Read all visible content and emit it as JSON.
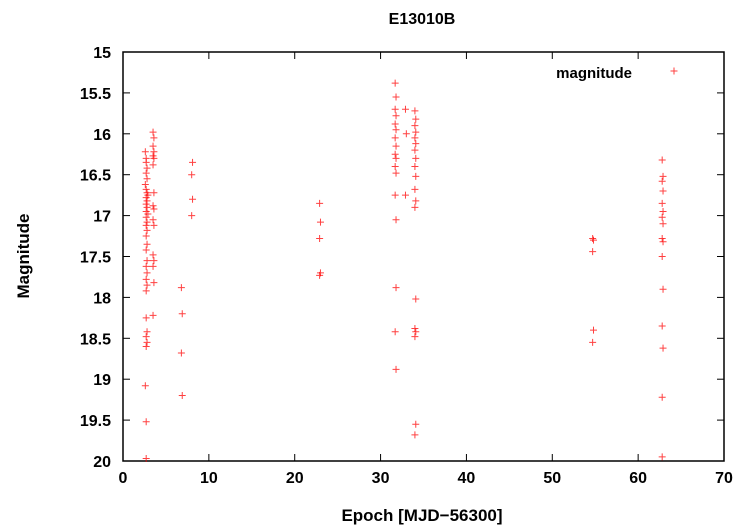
{
  "chart_data": {
    "type": "scatter",
    "title": "E13010B",
    "xlabel": "Epoch [MJD−56300]",
    "ylabel": "Magnitude",
    "xlim": [
      0,
      70
    ],
    "ylim": [
      20,
      15
    ],
    "y_inverted": true,
    "x_ticks": [
      0,
      10,
      20,
      30,
      40,
      50,
      60,
      70
    ],
    "y_ticks": [
      15,
      15.5,
      16,
      16.5,
      17,
      17.5,
      18,
      18.5,
      19,
      19.5,
      20
    ],
    "grid": false,
    "legend_position": "top-right",
    "marker": "plus",
    "color": "#ff0000",
    "series": [
      {
        "name": "magnitude",
        "points": [
          [
            2.6,
            16.22
          ],
          [
            2.7,
            16.3
          ],
          [
            2.7,
            16.35
          ],
          [
            2.8,
            16.42
          ],
          [
            2.7,
            16.48
          ],
          [
            2.8,
            16.55
          ],
          [
            2.6,
            16.62
          ],
          [
            2.7,
            16.68
          ],
          [
            2.8,
            16.72
          ],
          [
            2.9,
            16.75
          ],
          [
            2.7,
            16.78
          ],
          [
            2.8,
            16.82
          ],
          [
            2.7,
            16.86
          ],
          [
            2.8,
            16.9
          ],
          [
            2.7,
            16.95
          ],
          [
            2.9,
            16.98
          ],
          [
            2.7,
            17.02
          ],
          [
            2.8,
            17.08
          ],
          [
            2.7,
            17.12
          ],
          [
            2.8,
            17.18
          ],
          [
            2.7,
            17.25
          ],
          [
            2.8,
            17.35
          ],
          [
            2.7,
            17.42
          ],
          [
            2.8,
            17.55
          ],
          [
            2.7,
            17.62
          ],
          [
            2.8,
            17.7
          ],
          [
            2.7,
            17.78
          ],
          [
            2.8,
            17.85
          ],
          [
            2.7,
            17.92
          ],
          [
            2.7,
            18.25
          ],
          [
            2.8,
            18.42
          ],
          [
            2.7,
            18.48
          ],
          [
            2.8,
            18.55
          ],
          [
            2.7,
            18.6
          ],
          [
            2.6,
            19.08
          ],
          [
            2.7,
            19.52
          ],
          [
            2.7,
            19.97
          ],
          [
            3.5,
            15.98
          ],
          [
            3.6,
            16.05
          ],
          [
            3.5,
            16.15
          ],
          [
            3.6,
            16.22
          ],
          [
            3.5,
            16.27
          ],
          [
            3.6,
            16.3
          ],
          [
            3.5,
            16.38
          ],
          [
            3.6,
            16.72
          ],
          [
            3.5,
            16.88
          ],
          [
            3.6,
            16.92
          ],
          [
            3.5,
            17.05
          ],
          [
            3.6,
            17.12
          ],
          [
            3.5,
            17.48
          ],
          [
            3.6,
            17.55
          ],
          [
            3.5,
            17.62
          ],
          [
            3.6,
            17.82
          ],
          [
            3.5,
            18.22
          ],
          [
            6.8,
            17.88
          ],
          [
            6.9,
            18.2
          ],
          [
            6.8,
            18.68
          ],
          [
            6.9,
            19.2
          ],
          [
            8.1,
            16.35
          ],
          [
            8.0,
            16.5
          ],
          [
            8.1,
            16.8
          ],
          [
            8.0,
            17.0
          ],
          [
            22.9,
            16.85
          ],
          [
            23.0,
            17.08
          ],
          [
            22.9,
            17.28
          ],
          [
            23.0,
            17.7
          ],
          [
            22.9,
            17.73
          ],
          [
            31.7,
            15.38
          ],
          [
            31.8,
            15.55
          ],
          [
            31.7,
            15.7
          ],
          [
            31.8,
            15.78
          ],
          [
            31.7,
            15.88
          ],
          [
            31.8,
            15.95
          ],
          [
            31.7,
            16.05
          ],
          [
            31.8,
            16.15
          ],
          [
            31.7,
            16.25
          ],
          [
            31.8,
            16.3
          ],
          [
            31.7,
            16.4
          ],
          [
            31.8,
            16.48
          ],
          [
            31.7,
            16.75
          ],
          [
            31.8,
            17.05
          ],
          [
            31.8,
            17.88
          ],
          [
            31.7,
            18.42
          ],
          [
            31.8,
            18.88
          ],
          [
            32.9,
            15.7
          ],
          [
            33.0,
            16.0
          ],
          [
            32.9,
            16.75
          ],
          [
            34.0,
            15.72
          ],
          [
            34.1,
            15.82
          ],
          [
            34.0,
            15.9
          ],
          [
            34.1,
            15.98
          ],
          [
            34.0,
            16.05
          ],
          [
            34.1,
            16.12
          ],
          [
            34.0,
            16.2
          ],
          [
            34.1,
            16.3
          ],
          [
            34.0,
            16.4
          ],
          [
            34.1,
            16.52
          ],
          [
            34.0,
            16.68
          ],
          [
            34.1,
            16.82
          ],
          [
            34.0,
            16.9
          ],
          [
            34.1,
            18.02
          ],
          [
            34.0,
            18.38
          ],
          [
            34.1,
            18.42
          ],
          [
            34.0,
            18.48
          ],
          [
            34.1,
            19.55
          ],
          [
            34.0,
            19.68
          ],
          [
            54.7,
            17.28
          ],
          [
            54.8,
            17.3
          ],
          [
            54.7,
            17.44
          ],
          [
            54.8,
            18.4
          ],
          [
            54.7,
            18.55
          ],
          [
            62.8,
            16.32
          ],
          [
            62.9,
            16.52
          ],
          [
            62.8,
            16.58
          ],
          [
            62.9,
            16.7
          ],
          [
            62.8,
            16.85
          ],
          [
            62.9,
            16.95
          ],
          [
            62.8,
            17.02
          ],
          [
            62.9,
            17.1
          ],
          [
            62.8,
            17.28
          ],
          [
            62.9,
            17.32
          ],
          [
            62.8,
            17.5
          ],
          [
            62.9,
            17.9
          ],
          [
            62.8,
            18.35
          ],
          [
            62.9,
            18.62
          ],
          [
            62.8,
            19.22
          ],
          [
            62.8,
            19.95
          ]
        ]
      }
    ]
  }
}
